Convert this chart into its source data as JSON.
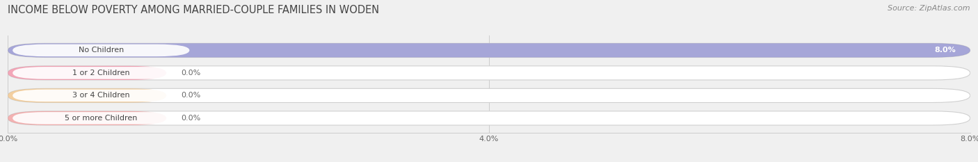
{
  "title": "INCOME BELOW POVERTY AMONG MARRIED-COUPLE FAMILIES IN WODEN",
  "source": "Source: ZipAtlas.com",
  "categories": [
    "No Children",
    "1 or 2 Children",
    "3 or 4 Children",
    "5 or more Children"
  ],
  "values": [
    8.0,
    0.0,
    0.0,
    0.0
  ],
  "bar_colors": [
    "#8888cc",
    "#f088a0",
    "#f0c080",
    "#f09898"
  ],
  "background_color": "#f0f0f0",
  "xlim": [
    0,
    8.0
  ],
  "xticks": [
    0.0,
    4.0,
    8.0
  ],
  "xtick_labels": [
    "0.0%",
    "4.0%",
    "8.0%"
  ],
  "title_fontsize": 10.5,
  "source_fontsize": 8,
  "label_fontsize": 8,
  "value_fontsize": 8,
  "bar_height": 0.62
}
